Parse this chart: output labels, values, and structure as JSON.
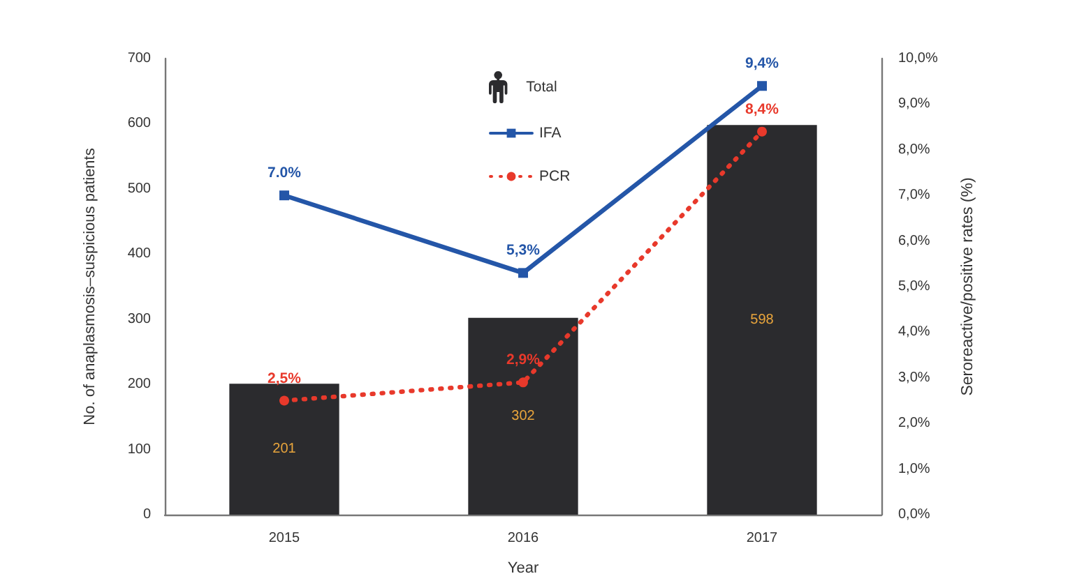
{
  "chart_data": {
    "type": "bar",
    "xlabel": "Year",
    "ylabel": "No. of anaplasmosis–suspicious patients",
    "y2label": "Seroreactive/positive rates (%)",
    "categories": [
      "2015",
      "2016",
      "2017"
    ],
    "series": [
      {
        "name": "Total",
        "color": "#2b2b2e",
        "values": [
          201,
          302,
          598
        ],
        "value_labels": [
          "201",
          "302",
          "598"
        ]
      },
      {
        "name": "IFA",
        "type": "line",
        "axis": "y2",
        "color": "#2456a8",
        "values": [
          7.0,
          5.3,
          9.4
        ],
        "value_labels": [
          "7.0%",
          "5,3%",
          "9,4%"
        ],
        "marker": "square",
        "line_style": "solid"
      },
      {
        "name": "PCR",
        "type": "line",
        "axis": "y2",
        "color": "#e8392b",
        "values": [
          2.5,
          2.9,
          8.4
        ],
        "value_labels": [
          "2,5%",
          "2,9%",
          "8,4%"
        ],
        "marker": "circle",
        "line_style": "dotted"
      }
    ],
    "ylim": [
      0,
      700
    ],
    "yticks": [
      0,
      100,
      200,
      300,
      400,
      500,
      600,
      700
    ],
    "y2lim": [
      0,
      10
    ],
    "y2ticks": [
      {
        "value": 0,
        "label": "0,0%"
      },
      {
        "value": 1,
        "label": "1,0%"
      },
      {
        "value": 2,
        "label": "2,0%"
      },
      {
        "value": 3,
        "label": "3,0%"
      },
      {
        "value": 4,
        "label": "4,0%"
      },
      {
        "value": 5,
        "label": "5,0%"
      },
      {
        "value": 6,
        "label": "6,0%"
      },
      {
        "value": 7,
        "label": "7,0%"
      },
      {
        "value": 8,
        "label": "8,0%"
      },
      {
        "value": 9,
        "label": "9,0%"
      },
      {
        "value": 10,
        "label": "10,0%"
      }
    ],
    "grid": false,
    "legend": "top"
  }
}
